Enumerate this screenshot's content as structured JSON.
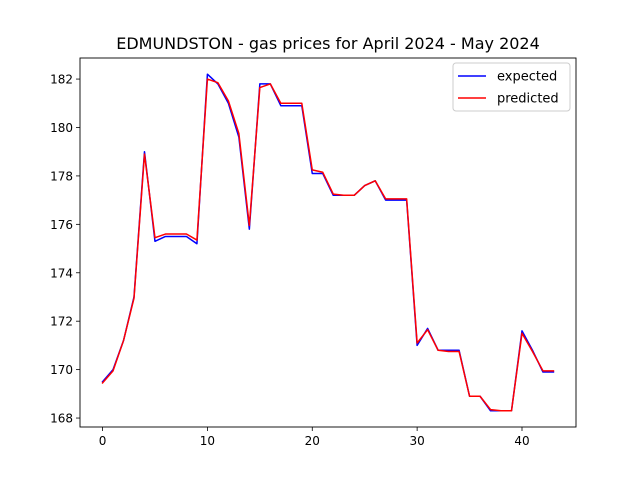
{
  "chart_data": {
    "type": "line",
    "title": "EDMUNDSTON - gas prices for April 2024 - May 2024",
    "xlabel": "",
    "ylabel": "",
    "xlim": [
      -2.15,
      45.15
    ],
    "ylim": [
      167.63,
      182.87
    ],
    "x_ticks": [
      0,
      10,
      20,
      30,
      40
    ],
    "y_ticks": [
      168,
      170,
      172,
      174,
      176,
      178,
      180,
      182
    ],
    "legend_position": "top-right",
    "x": [
      0,
      1,
      2,
      3,
      4,
      5,
      6,
      7,
      8,
      9,
      10,
      11,
      12,
      13,
      14,
      15,
      16,
      17,
      18,
      19,
      20,
      21,
      22,
      23,
      24,
      25,
      26,
      27,
      28,
      29,
      30,
      31,
      32,
      33,
      34,
      35,
      36,
      37,
      38,
      39,
      40,
      41,
      42,
      43
    ],
    "series": [
      {
        "name": "expected",
        "color": "#0000ff",
        "values": [
          169.5,
          170.0,
          171.2,
          173.0,
          179.0,
          175.3,
          175.5,
          175.5,
          175.5,
          175.2,
          182.2,
          181.8,
          181.0,
          179.6,
          175.8,
          181.8,
          181.8,
          180.9,
          180.9,
          180.9,
          178.1,
          178.1,
          177.2,
          177.2,
          177.2,
          177.6,
          177.8,
          177.0,
          177.0,
          177.0,
          171.0,
          171.7,
          170.8,
          170.8,
          170.8,
          168.9,
          168.9,
          168.3,
          168.3,
          168.3,
          171.6,
          170.8,
          169.9,
          169.9
        ]
      },
      {
        "name": "predicted",
        "color": "#ff0000",
        "values": [
          169.45,
          169.95,
          171.2,
          172.95,
          178.9,
          175.45,
          175.6,
          175.6,
          175.6,
          175.35,
          182.0,
          181.85,
          181.1,
          179.75,
          175.95,
          181.65,
          181.8,
          181.0,
          181.0,
          181.0,
          178.25,
          178.15,
          177.25,
          177.2,
          177.2,
          177.6,
          177.8,
          177.05,
          177.05,
          177.05,
          171.1,
          171.65,
          170.8,
          170.75,
          170.75,
          168.9,
          168.9,
          168.35,
          168.3,
          168.3,
          171.5,
          170.75,
          169.95,
          169.95
        ]
      }
    ]
  }
}
